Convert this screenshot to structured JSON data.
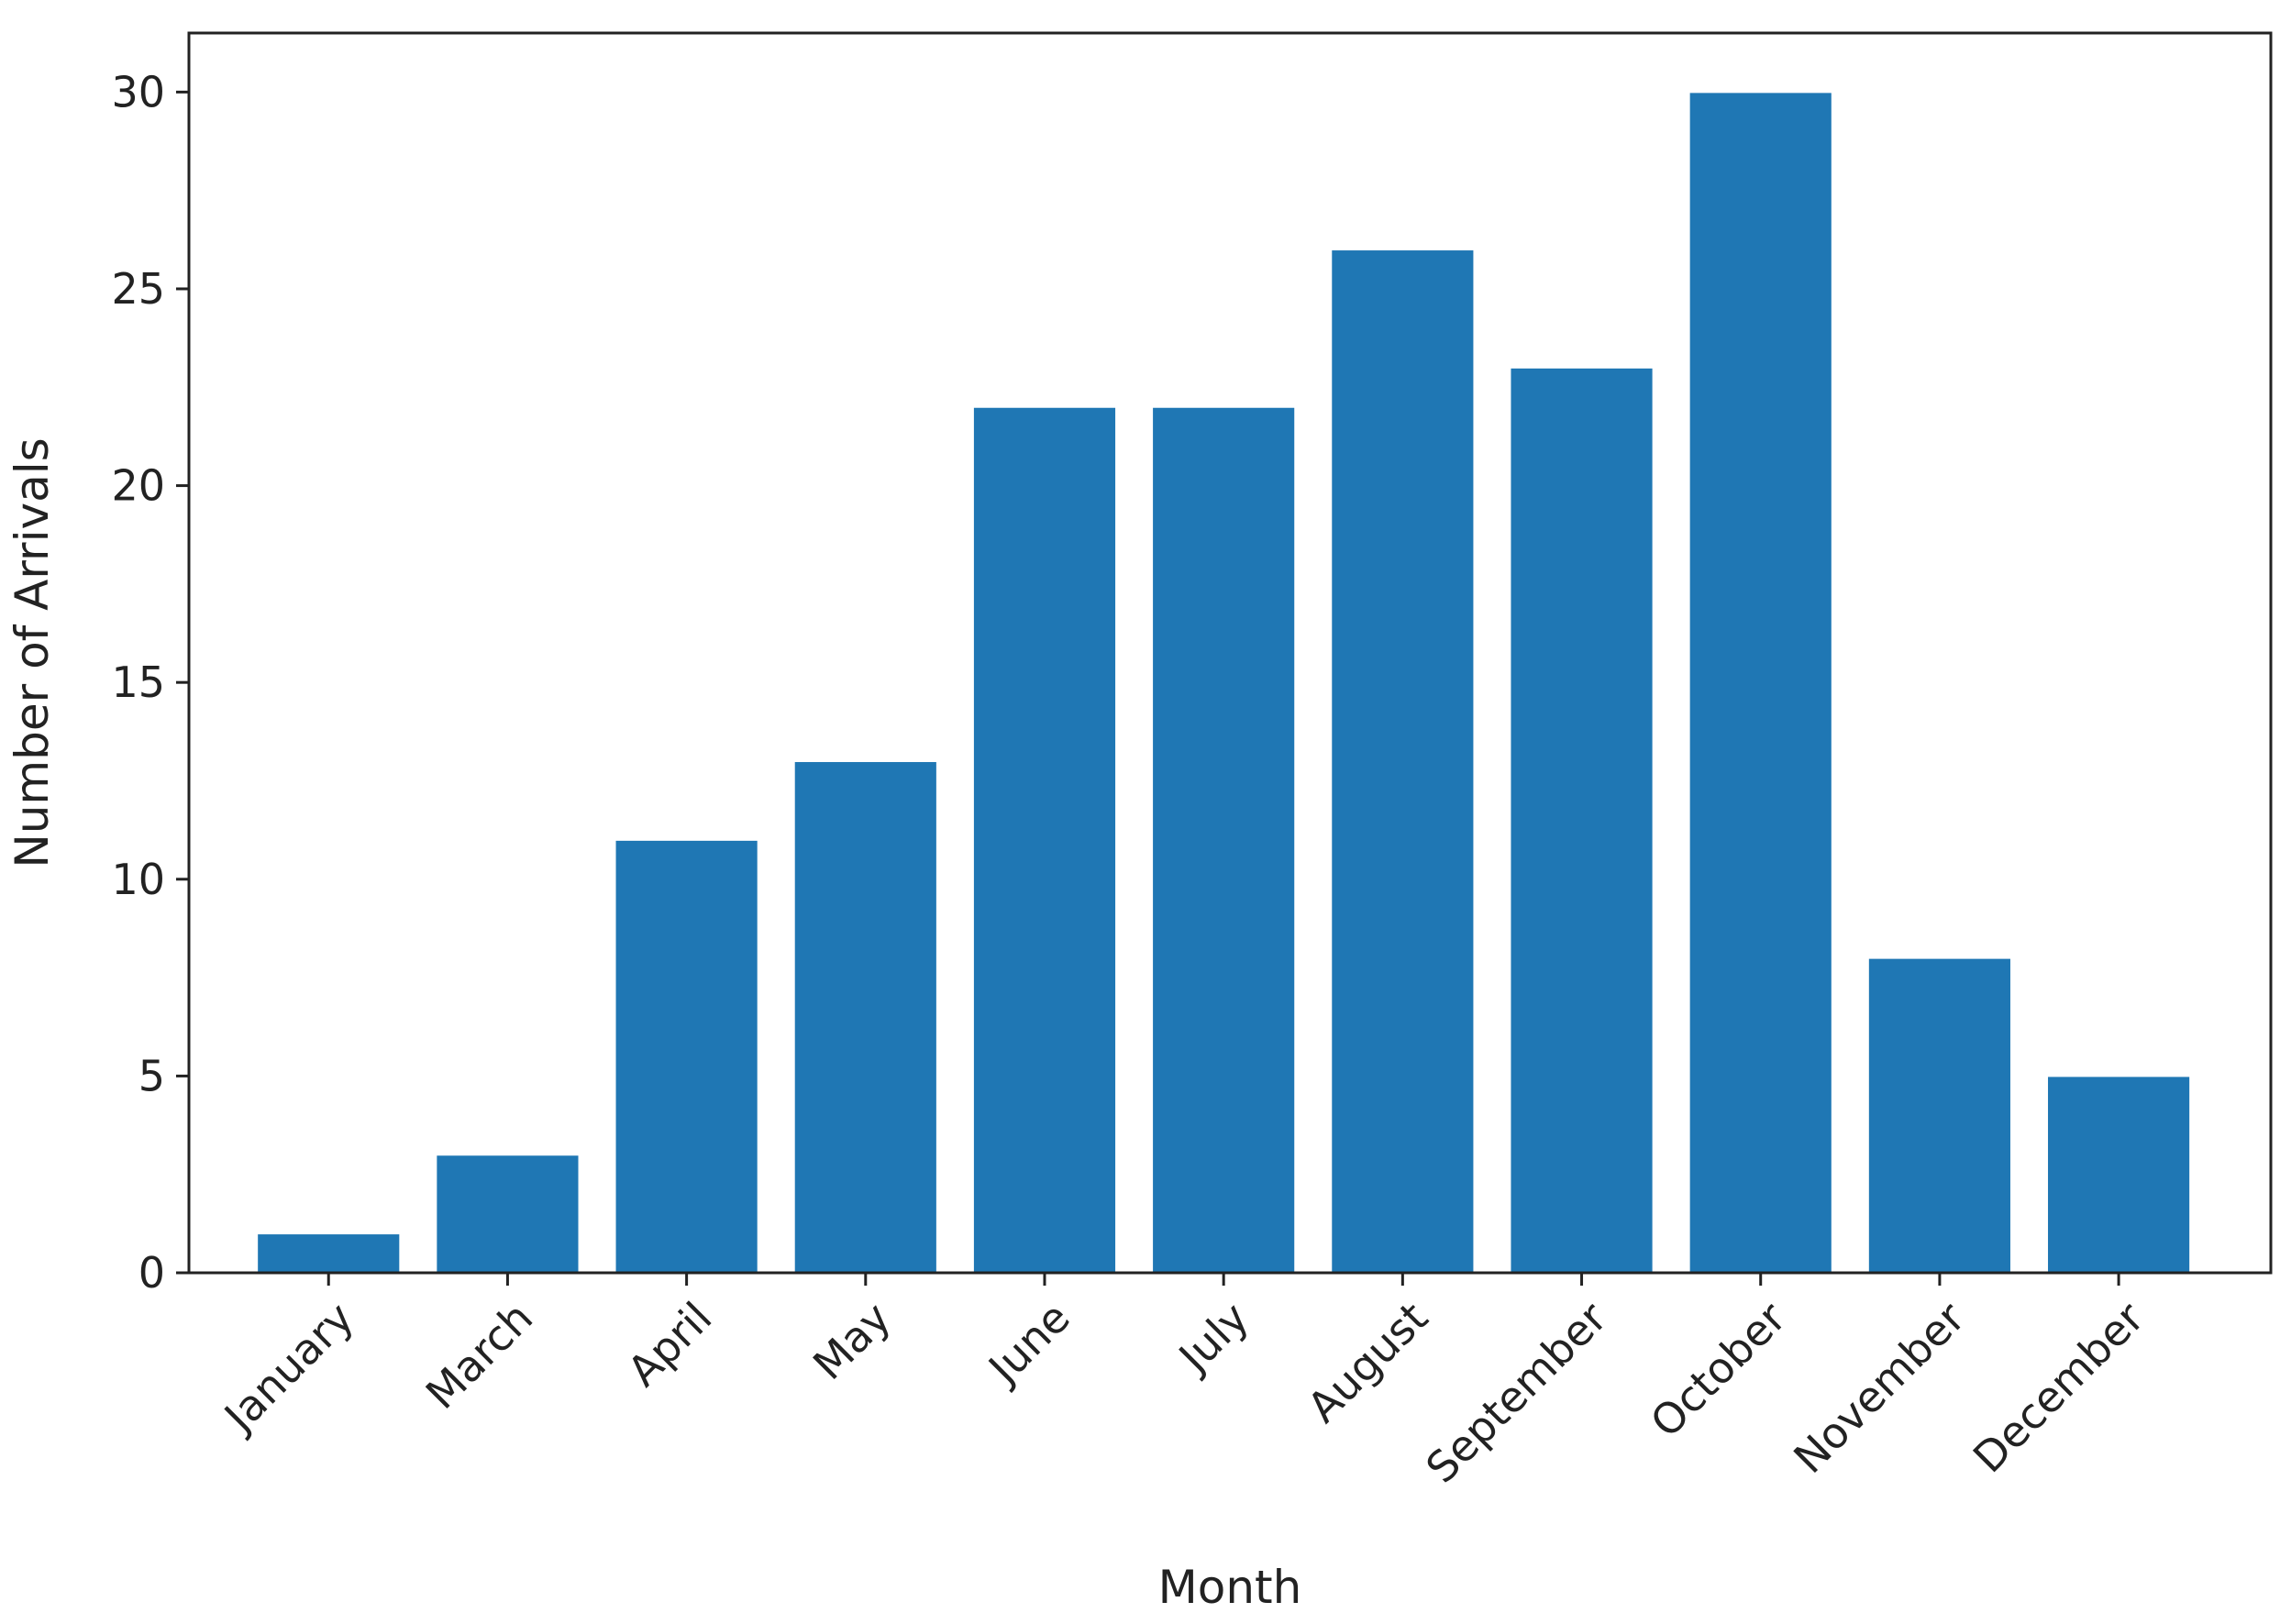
{
  "chart_data": {
    "type": "bar",
    "xlabel": "Month",
    "ylabel": "Number of Arrivals",
    "categories": [
      "January",
      "March",
      "April",
      "May",
      "June",
      "July",
      "August",
      "September",
      "October",
      "November",
      "December"
    ],
    "values": [
      1,
      3,
      11,
      13,
      22,
      22,
      26,
      23,
      30,
      8,
      5
    ],
    "ylim": [
      0,
      31.5
    ],
    "yticks": [
      0,
      5,
      10,
      15,
      20,
      25,
      30
    ],
    "grid": false,
    "legend": "none",
    "bar_color": "#1f77b4"
  }
}
